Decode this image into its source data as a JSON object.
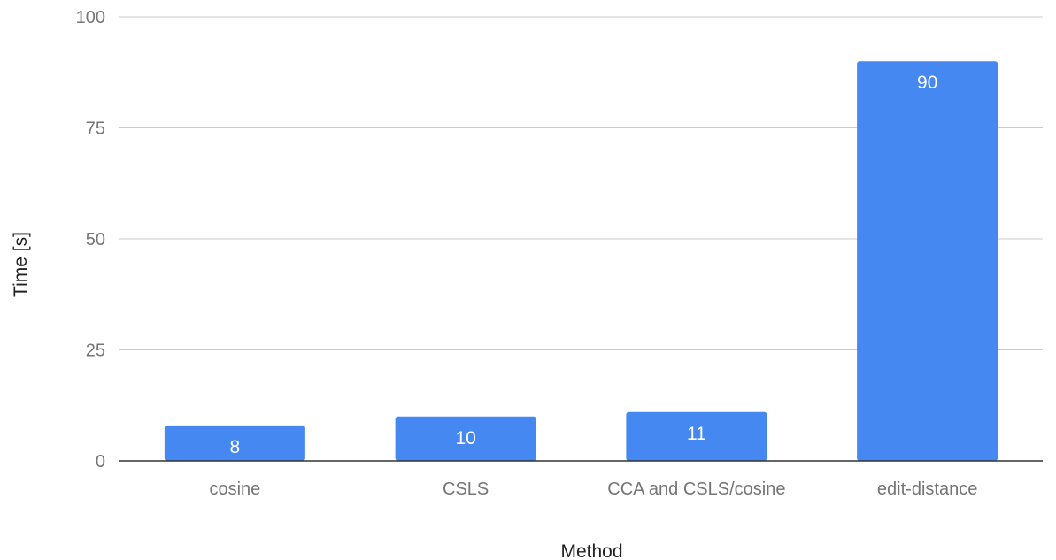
{
  "chart_data": {
    "type": "bar",
    "title": "",
    "xlabel": "Method",
    "ylabel": "Time [s]",
    "categories": [
      "cosine",
      "CSLS",
      "CCA and CSLS/cosine",
      "edit-distance"
    ],
    "values": [
      8,
      10,
      11,
      90
    ],
    "data_labels": [
      "8",
      "10",
      "11",
      "90"
    ],
    "ylim": [
      0,
      100
    ],
    "yticks": [
      0,
      25,
      50,
      75,
      100
    ],
    "ytick_labels": [
      "0",
      "25",
      "50",
      "75",
      "100"
    ],
    "grid": true,
    "legend": "none",
    "colors": {
      "bar": "#4688F1",
      "grid": "#cccccc",
      "baseline": "#333333",
      "tick_text": "#757575",
      "axis_title_text": "#222222",
      "data_label_text": "#ffffff"
    }
  }
}
